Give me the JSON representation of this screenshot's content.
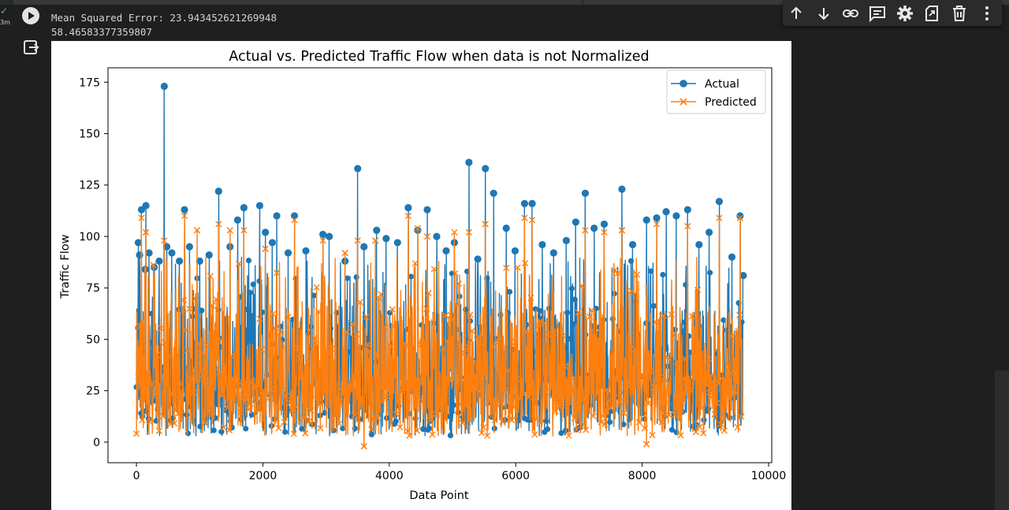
{
  "cell": {
    "status": "completed",
    "elapsed": "3m",
    "output_lines": [
      "Mean Squared Error: 23.943452621269948",
      "58.46583377359807"
    ]
  },
  "toolbar": {
    "buttons": [
      {
        "name": "move-up-button",
        "icon": "arrow-up-icon",
        "tooltip": "Move cell up"
      },
      {
        "name": "move-down-button",
        "icon": "arrow-down-icon",
        "tooltip": "Move cell down"
      },
      {
        "name": "copy-link-button",
        "icon": "link-icon",
        "tooltip": "Copy link to cell"
      },
      {
        "name": "add-comment-button",
        "icon": "comment-icon",
        "tooltip": "Add a comment"
      },
      {
        "name": "settings-button",
        "icon": "gear-icon",
        "tooltip": "Open editor settings"
      },
      {
        "name": "mirror-cell-button",
        "icon": "mirror-icon",
        "tooltip": "Mirror cell in tab"
      },
      {
        "name": "delete-cell-button",
        "icon": "trash-icon",
        "tooltip": "Delete cell"
      },
      {
        "name": "more-actions-button",
        "icon": "more-vert-icon",
        "tooltip": "More cell actions"
      }
    ]
  },
  "chart_data": {
    "type": "line",
    "title": "Actual vs. Predicted Traffic Flow when data is not Normalized",
    "xlabel": "Data Point",
    "ylabel": "Traffic Flow",
    "xlim": [
      -450,
      10050
    ],
    "ylim": [
      -10,
      182
    ],
    "xticks": [
      0,
      2000,
      4000,
      6000,
      8000,
      10000
    ],
    "xtick_labels": [
      "0",
      "2000",
      "4000",
      "6000",
      "8000",
      "10000"
    ],
    "yticks": [
      0,
      25,
      50,
      75,
      100,
      125,
      150,
      175
    ],
    "ytick_labels": [
      "0",
      "25",
      "50",
      "75",
      "100",
      "125",
      "150",
      "175"
    ],
    "grid": false,
    "legend": "top-right",
    "n_points": 9600,
    "series": [
      {
        "name": "Actual",
        "color": "#1f77b4",
        "marker": "o",
        "notable_points": [
          {
            "x": 30,
            "y": 97
          },
          {
            "x": 50,
            "y": 91
          },
          {
            "x": 80,
            "y": 113
          },
          {
            "x": 140,
            "y": 84
          },
          {
            "x": 150,
            "y": 115
          },
          {
            "x": 200,
            "y": 92
          },
          {
            "x": 280,
            "y": 85
          },
          {
            "x": 360,
            "y": 88
          },
          {
            "x": 440,
            "y": 173
          },
          {
            "x": 480,
            "y": 95
          },
          {
            "x": 560,
            "y": 92
          },
          {
            "x": 680,
            "y": 88
          },
          {
            "x": 760,
            "y": 113
          },
          {
            "x": 840,
            "y": 95
          },
          {
            "x": 1000,
            "y": 88
          },
          {
            "x": 1150,
            "y": 91
          },
          {
            "x": 1300,
            "y": 122
          },
          {
            "x": 1480,
            "y": 95
          },
          {
            "x": 1600,
            "y": 108
          },
          {
            "x": 1700,
            "y": 114
          },
          {
            "x": 1950,
            "y": 115
          },
          {
            "x": 2040,
            "y": 102
          },
          {
            "x": 2150,
            "y": 97
          },
          {
            "x": 2220,
            "y": 110
          },
          {
            "x": 2400,
            "y": 92
          },
          {
            "x": 2500,
            "y": 110
          },
          {
            "x": 2680,
            "y": 93
          },
          {
            "x": 2950,
            "y": 101
          },
          {
            "x": 3050,
            "y": 100
          },
          {
            "x": 3300,
            "y": 88
          },
          {
            "x": 3500,
            "y": 133
          },
          {
            "x": 3600,
            "y": 95
          },
          {
            "x": 3800,
            "y": 103
          },
          {
            "x": 3950,
            "y": 99
          },
          {
            "x": 4130,
            "y": 97
          },
          {
            "x": 4300,
            "y": 114
          },
          {
            "x": 4450,
            "y": 103
          },
          {
            "x": 4600,
            "y": 113
          },
          {
            "x": 4750,
            "y": 100
          },
          {
            "x": 4900,
            "y": 93
          },
          {
            "x": 5030,
            "y": 97
          },
          {
            "x": 5260,
            "y": 136
          },
          {
            "x": 5400,
            "y": 89
          },
          {
            "x": 5520,
            "y": 133
          },
          {
            "x": 5650,
            "y": 121
          },
          {
            "x": 5850,
            "y": 104
          },
          {
            "x": 5990,
            "y": 93
          },
          {
            "x": 6140,
            "y": 116
          },
          {
            "x": 6260,
            "y": 116
          },
          {
            "x": 6420,
            "y": 96
          },
          {
            "x": 6600,
            "y": 92
          },
          {
            "x": 6800,
            "y": 98
          },
          {
            "x": 6950,
            "y": 107
          },
          {
            "x": 7100,
            "y": 121
          },
          {
            "x": 7240,
            "y": 104
          },
          {
            "x": 7400,
            "y": 106
          },
          {
            "x": 7680,
            "y": 123
          },
          {
            "x": 7850,
            "y": 96
          },
          {
            "x": 8070,
            "y": 108
          },
          {
            "x": 8230,
            "y": 109
          },
          {
            "x": 8380,
            "y": 112
          },
          {
            "x": 8540,
            "y": 110
          },
          {
            "x": 8720,
            "y": 113
          },
          {
            "x": 8900,
            "y": 96
          },
          {
            "x": 9060,
            "y": 102
          },
          {
            "x": 9220,
            "y": 117
          },
          {
            "x": 9420,
            "y": 90
          },
          {
            "x": 9550,
            "y": 110
          },
          {
            "x": 9600,
            "y": 81
          }
        ],
        "typical_range": [
          0,
          95
        ],
        "min": 0
      },
      {
        "name": "Predicted",
        "color": "#ff7f0e",
        "marker": "x",
        "notable_points": [
          {
            "x": 80,
            "y": 109
          },
          {
            "x": 150,
            "y": 102
          },
          {
            "x": 440,
            "y": 98
          },
          {
            "x": 760,
            "y": 110
          },
          {
            "x": 960,
            "y": 103
          },
          {
            "x": 1300,
            "y": 106
          },
          {
            "x": 1480,
            "y": 103
          },
          {
            "x": 1700,
            "y": 103
          },
          {
            "x": 2040,
            "y": 94
          },
          {
            "x": 2500,
            "y": 108
          },
          {
            "x": 2950,
            "y": 98
          },
          {
            "x": 3300,
            "y": 92
          },
          {
            "x": 3500,
            "y": 98
          },
          {
            "x": 3600,
            "y": -2
          },
          {
            "x": 3780,
            "y": 98
          },
          {
            "x": 4300,
            "y": 110
          },
          {
            "x": 4450,
            "y": 104
          },
          {
            "x": 4600,
            "y": 100
          },
          {
            "x": 5030,
            "y": 102
          },
          {
            "x": 5260,
            "y": 102
          },
          {
            "x": 5520,
            "y": 106
          },
          {
            "x": 6140,
            "y": 109
          },
          {
            "x": 6260,
            "y": 108
          },
          {
            "x": 7100,
            "y": 103
          },
          {
            "x": 7400,
            "y": 102
          },
          {
            "x": 7680,
            "y": 103
          },
          {
            "x": 8070,
            "y": -1
          },
          {
            "x": 8230,
            "y": 106
          },
          {
            "x": 8720,
            "y": 105
          },
          {
            "x": 9220,
            "y": 109
          },
          {
            "x": 9550,
            "y": 109
          }
        ],
        "typical_range": [
          2,
          90
        ],
        "min": -2
      }
    ]
  }
}
